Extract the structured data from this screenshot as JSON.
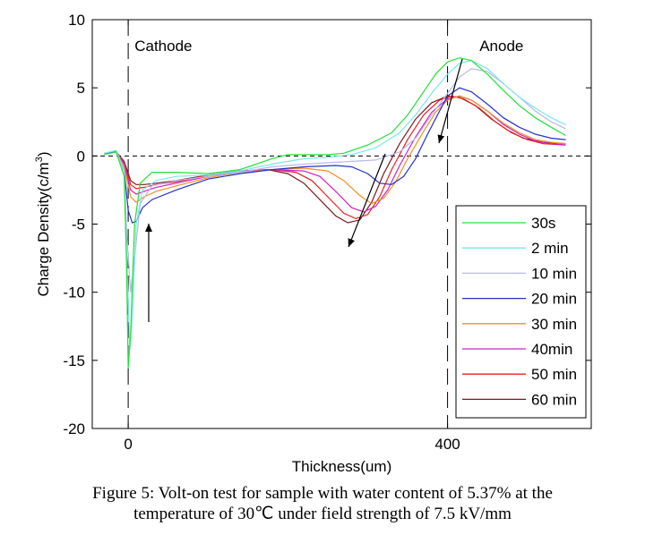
{
  "caption": {
    "line1": "Figure 5: Volt-on test for sample with water content of 5.37% at the",
    "line2": "temperature of 30℃ under field strength of 7.5 kV/mm"
  },
  "chart_data": {
    "type": "line",
    "title": "",
    "xlabel": "Thickness(um)",
    "ylabel": "Charge Density(c/m",
    "ylabel_sup": "3",
    "ylabel_close": ")",
    "xlim": [
      -45,
      580
    ],
    "ylim": [
      -20,
      10
    ],
    "x_ticks": [
      0,
      400
    ],
    "y_ticks": [
      10,
      5,
      0,
      -5,
      -10,
      -15,
      -20
    ],
    "grid": false,
    "legend_position": "lower-right",
    "annotations": [
      {
        "text": "Cathode",
        "x": 8,
        "y": 8.1
      },
      {
        "text": "Anode",
        "x": 440,
        "y": 8.1
      }
    ],
    "series": [
      {
        "name": "30s",
        "color": "#22e03a",
        "points": [
          [
            -30,
            0.1
          ],
          [
            -15,
            0.3
          ],
          [
            -5,
            -1.5
          ],
          [
            -2,
            -8
          ],
          [
            0,
            -15.6
          ],
          [
            3,
            -13
          ],
          [
            8,
            -5
          ],
          [
            15,
            -2
          ],
          [
            30,
            -1.2
          ],
          [
            60,
            -1.2
          ],
          [
            100,
            -1.3
          ],
          [
            140,
            -1.0
          ],
          [
            180,
            -0.2
          ],
          [
            200,
            0.1
          ],
          [
            230,
            0.1
          ],
          [
            250,
            0.1
          ],
          [
            270,
            0.2
          ],
          [
            300,
            0.8
          ],
          [
            330,
            1.7
          ],
          [
            350,
            3
          ],
          [
            370,
            4.7
          ],
          [
            385,
            6
          ],
          [
            400,
            6.9
          ],
          [
            415,
            7.2
          ],
          [
            430,
            7
          ],
          [
            450,
            6
          ],
          [
            470,
            4.8
          ],
          [
            490,
            3.7
          ],
          [
            510,
            2.8
          ],
          [
            530,
            2.1
          ],
          [
            548,
            1.5
          ]
        ]
      },
      {
        "name": "2 min",
        "color": "#78e8ea",
        "points": [
          [
            -30,
            0.2
          ],
          [
            -15,
            0.4
          ],
          [
            -5,
            -1.2
          ],
          [
            -2,
            -7
          ],
          [
            2,
            -14.2
          ],
          [
            5,
            -12
          ],
          [
            10,
            -5
          ],
          [
            18,
            -2.5
          ],
          [
            35,
            -1.8
          ],
          [
            60,
            -1.5
          ],
          [
            100,
            -1.4
          ],
          [
            140,
            -1.1
          ],
          [
            180,
            -0.6
          ],
          [
            220,
            -0.2
          ],
          [
            250,
            -0.1
          ],
          [
            280,
            0.1
          ],
          [
            310,
            0.6
          ],
          [
            340,
            1.7
          ],
          [
            360,
            3
          ],
          [
            380,
            4.6
          ],
          [
            400,
            6.0
          ],
          [
            415,
            6.8
          ],
          [
            430,
            7.0
          ],
          [
            450,
            6.4
          ],
          [
            470,
            5.3
          ],
          [
            490,
            4.3
          ],
          [
            510,
            3.5
          ],
          [
            530,
            2.8
          ],
          [
            548,
            2.3
          ]
        ]
      },
      {
        "name": "10 min",
        "color": "#b8b8ec",
        "points": [
          [
            -30,
            0.2
          ],
          [
            -15,
            0.4
          ],
          [
            -5,
            -1
          ],
          [
            -2,
            -5.5
          ],
          [
            3,
            -10
          ],
          [
            8,
            -7.5
          ],
          [
            15,
            -3.5
          ],
          [
            30,
            -2.2
          ],
          [
            60,
            -1.8
          ],
          [
            100,
            -1.5
          ],
          [
            140,
            -1.2
          ],
          [
            180,
            -0.8
          ],
          [
            220,
            -0.6
          ],
          [
            250,
            -0.5
          ],
          [
            280,
            -0.4
          ],
          [
            310,
            -0.3
          ],
          [
            340,
            0.3
          ],
          [
            360,
            1.3
          ],
          [
            380,
            3
          ],
          [
            400,
            4.6
          ],
          [
            415,
            5.8
          ],
          [
            430,
            6.4
          ],
          [
            450,
            6.2
          ],
          [
            470,
            5.3
          ],
          [
            490,
            4.3
          ],
          [
            510,
            3.3
          ],
          [
            530,
            2.5
          ],
          [
            548,
            2.0
          ]
        ]
      },
      {
        "name": "20 min",
        "color": "#2431c9",
        "points": [
          [
            -30,
            0.2
          ],
          [
            -15,
            0.3
          ],
          [
            -5,
            -1
          ],
          [
            0,
            -4
          ],
          [
            5,
            -4.9
          ],
          [
            10,
            -4.8
          ],
          [
            18,
            -3.8
          ],
          [
            30,
            -3.2
          ],
          [
            60,
            -2.5
          ],
          [
            100,
            -1.7
          ],
          [
            140,
            -1.3
          ],
          [
            180,
            -1.0
          ],
          [
            220,
            -0.8
          ],
          [
            260,
            -0.7
          ],
          [
            280,
            -0.8
          ],
          [
            300,
            -1.3
          ],
          [
            315,
            -2.0
          ],
          [
            330,
            -2.1
          ],
          [
            345,
            -1.5
          ],
          [
            360,
            -0.2
          ],
          [
            375,
            1.6
          ],
          [
            390,
            3.3
          ],
          [
            400,
            4.4
          ],
          [
            415,
            5.0
          ],
          [
            430,
            4.7
          ],
          [
            450,
            3.8
          ],
          [
            470,
            2.8
          ],
          [
            490,
            2.1
          ],
          [
            510,
            1.6
          ],
          [
            530,
            1.3
          ],
          [
            548,
            1.2
          ]
        ]
      },
      {
        "name": "30 min",
        "color": "#f09020",
        "points": [
          [
            -30,
            0.2
          ],
          [
            -15,
            0.3
          ],
          [
            -5,
            -0.8
          ],
          [
            3,
            -3.0
          ],
          [
            10,
            -3.4
          ],
          [
            20,
            -3.0
          ],
          [
            35,
            -2.6
          ],
          [
            60,
            -2.2
          ],
          [
            100,
            -1.6
          ],
          [
            140,
            -1.2
          ],
          [
            180,
            -1.0
          ],
          [
            220,
            -0.9
          ],
          [
            250,
            -1.1
          ],
          [
            270,
            -1.8
          ],
          [
            290,
            -2.9
          ],
          [
            305,
            -3.5
          ],
          [
            320,
            -3.1
          ],
          [
            335,
            -1.9
          ],
          [
            350,
            -0.2
          ],
          [
            370,
            1.8
          ],
          [
            385,
            3.2
          ],
          [
            400,
            4.1
          ],
          [
            415,
            4.4
          ],
          [
            430,
            4.1
          ],
          [
            450,
            3.3
          ],
          [
            470,
            2.4
          ],
          [
            490,
            1.7
          ],
          [
            510,
            1.2
          ],
          [
            530,
            1.0
          ],
          [
            548,
            0.9
          ]
        ]
      },
      {
        "name": "40min",
        "color": "#d020c8",
        "points": [
          [
            -30,
            0.2
          ],
          [
            -15,
            0.3
          ],
          [
            -5,
            -0.6
          ],
          [
            3,
            -2.5
          ],
          [
            10,
            -2.8
          ],
          [
            20,
            -2.6
          ],
          [
            35,
            -2.3
          ],
          [
            60,
            -2.0
          ],
          [
            100,
            -1.5
          ],
          [
            140,
            -1.1
          ],
          [
            180,
            -1.0
          ],
          [
            220,
            -1.1
          ],
          [
            240,
            -1.5
          ],
          [
            260,
            -2.6
          ],
          [
            280,
            -3.8
          ],
          [
            295,
            -4.1
          ],
          [
            310,
            -3.7
          ],
          [
            325,
            -2.5
          ],
          [
            340,
            -0.7
          ],
          [
            360,
            1.4
          ],
          [
            380,
            3.2
          ],
          [
            400,
            4.2
          ],
          [
            415,
            4.4
          ],
          [
            430,
            4.1
          ],
          [
            450,
            3.3
          ],
          [
            470,
            2.3
          ],
          [
            490,
            1.6
          ],
          [
            510,
            1.1
          ],
          [
            530,
            0.9
          ],
          [
            548,
            0.8
          ]
        ]
      },
      {
        "name": "50 min",
        "color": "#e82020",
        "points": [
          [
            -30,
            0.2
          ],
          [
            -15,
            0.3
          ],
          [
            -5,
            -0.5
          ],
          [
            3,
            -2.1
          ],
          [
            10,
            -2.4
          ],
          [
            20,
            -2.3
          ],
          [
            35,
            -2.1
          ],
          [
            60,
            -1.9
          ],
          [
            100,
            -1.4
          ],
          [
            140,
            -1.1
          ],
          [
            180,
            -1.0
          ],
          [
            210,
            -1.2
          ],
          [
            230,
            -1.8
          ],
          [
            250,
            -3.0
          ],
          [
            270,
            -4.2
          ],
          [
            285,
            -4.6
          ],
          [
            300,
            -4.3
          ],
          [
            315,
            -3.0
          ],
          [
            330,
            -1.0
          ],
          [
            350,
            1.2
          ],
          [
            370,
            3.0
          ],
          [
            390,
            4.1
          ],
          [
            405,
            4.4
          ],
          [
            420,
            4.2
          ],
          [
            440,
            3.5
          ],
          [
            460,
            2.5
          ],
          [
            480,
            1.7
          ],
          [
            500,
            1.2
          ],
          [
            520,
            0.9
          ],
          [
            548,
            0.8
          ]
        ]
      },
      {
        "name": "60 min",
        "color": "#7a1818",
        "points": [
          [
            -30,
            0.2
          ],
          [
            -15,
            0.3
          ],
          [
            -5,
            -0.4
          ],
          [
            3,
            -1.8
          ],
          [
            10,
            -2.1
          ],
          [
            20,
            -2.1
          ],
          [
            35,
            -2.0
          ],
          [
            60,
            -1.8
          ],
          [
            100,
            -1.4
          ],
          [
            140,
            -1.1
          ],
          [
            175,
            -1.0
          ],
          [
            200,
            -1.3
          ],
          [
            220,
            -2.0
          ],
          [
            240,
            -3.2
          ],
          [
            260,
            -4.4
          ],
          [
            275,
            -4.9
          ],
          [
            290,
            -4.7
          ],
          [
            305,
            -3.4
          ],
          [
            320,
            -1.3
          ],
          [
            340,
            0.9
          ],
          [
            360,
            2.7
          ],
          [
            380,
            3.9
          ],
          [
            400,
            4.4
          ],
          [
            415,
            4.3
          ],
          [
            435,
            3.7
          ],
          [
            455,
            2.7
          ],
          [
            475,
            1.9
          ],
          [
            495,
            1.3
          ],
          [
            520,
            1.0
          ],
          [
            548,
            0.9
          ]
        ]
      }
    ]
  }
}
